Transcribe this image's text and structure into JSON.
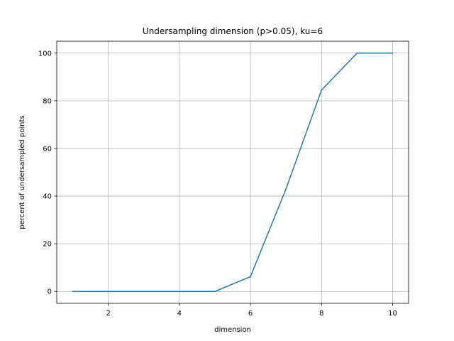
{
  "chart_data": {
    "type": "line",
    "title": "Undersampling dimension (p>0.05), ku=6",
    "xlabel": "dimension",
    "ylabel": "percent of undersampled points",
    "xlim": [
      0.55,
      10.45
    ],
    "ylim": [
      -5,
      105
    ],
    "xticks": [
      2,
      4,
      6,
      8,
      10
    ],
    "yticks": [
      0,
      20,
      40,
      60,
      80,
      100
    ],
    "grid": true,
    "series": [
      {
        "color": "#1f77b4",
        "x": [
          1,
          2,
          3,
          4,
          5,
          6,
          7,
          8,
          9,
          10
        ],
        "y": [
          0,
          0,
          0,
          0,
          0,
          6.2,
          43,
          84.5,
          100,
          100
        ]
      }
    ]
  }
}
